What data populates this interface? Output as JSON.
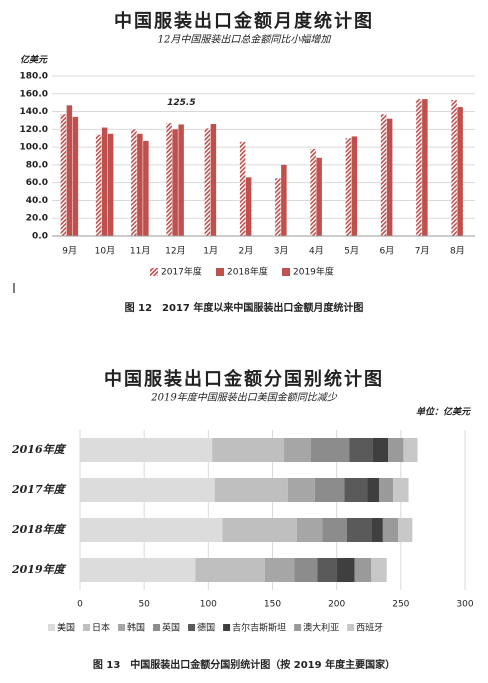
{
  "chart_data": [
    {
      "type": "bar",
      "title": "中国服装出口金额月度统计图",
      "subtitle": "12月中国服装出口总金额同比小幅增加",
      "y_label": "亿美元",
      "categories": [
        "9月",
        "10月",
        "11月",
        "12月",
        "1月",
        "2月",
        "3月",
        "4月",
        "5月",
        "6月",
        "7月",
        "8月"
      ],
      "series": [
        {
          "name": "2017年度",
          "color": "#c0504d",
          "hatch": true,
          "values": [
            137,
            114,
            120,
            127,
            121,
            106,
            65,
            98,
            110,
            137,
            154,
            153
          ]
        },
        {
          "name": "2018年度",
          "color": "#c0504d",
          "values": [
            147,
            122,
            115,
            120,
            null,
            null,
            null,
            null,
            null,
            null,
            null,
            null
          ]
        },
        {
          "name": "2019年度",
          "color": "#c0504d",
          "values": [
            134,
            115,
            107,
            125.5,
            126,
            66,
            80,
            88,
            112,
            132,
            154,
            145
          ],
          "value_labels": [
            null,
            null,
            null,
            "125.5",
            null,
            null,
            null,
            null,
            null,
            null,
            null,
            null
          ]
        }
      ],
      "ylim": [
        0,
        180
      ],
      "yticks": [
        {
          "value": 0,
          "label": "0.0"
        },
        {
          "value": 20,
          "label": "20.0"
        },
        {
          "value": 40,
          "label": "40.0"
        },
        {
          "value": 60,
          "label": "60.0"
        },
        {
          "value": 80,
          "label": "80.0"
        },
        {
          "value": 100,
          "label": "100.0"
        },
        {
          "value": 120,
          "label": "120.0"
        },
        {
          "value": 140,
          "label": "140.0"
        },
        {
          "value": 160,
          "label": "160.0"
        },
        {
          "value": 180,
          "label": "180.0"
        }
      ],
      "grid": true,
      "legend": "bottom",
      "caption": "图 12　2017 年度以来中国服装出口金额月度统计图"
    },
    {
      "type": "bar",
      "orientation": "horizontal",
      "stacked": true,
      "title": "中国服装出口金额分国别统计图",
      "subtitle": "2019年度中国服装出口美国金额同比减少",
      "unit": "单位：亿美元",
      "categories": [
        "2016年度",
        "2017年度",
        "2018年度",
        "2019年度"
      ],
      "series": [
        {
          "name": "美国",
          "color": "#dcdcdc",
          "values": [
            103,
            105,
            111,
            90
          ]
        },
        {
          "name": "日本",
          "color": "#bfbfbf",
          "values": [
            56,
            57,
            58,
            54
          ]
        },
        {
          "name": "韩国",
          "color": "#a6a6a6",
          "values": [
            21,
            21,
            20,
            23
          ]
        },
        {
          "name": "英国",
          "color": "#8c8c8c",
          "values": [
            30,
            23,
            19,
            18
          ]
        },
        {
          "name": "德国",
          "color": "#5a5a5a",
          "values": [
            18,
            18,
            19,
            15
          ]
        },
        {
          "name": "吉尔吉斯斯坦",
          "color": "#3f3f3f",
          "values": [
            12,
            9,
            9,
            14
          ]
        },
        {
          "name": "澳大利亚",
          "color": "#9a9a9a",
          "values": [
            12,
            11,
            12,
            13
          ]
        },
        {
          "name": "西班牙",
          "color": "#c8c8c8",
          "values": [
            11,
            12,
            11,
            12
          ]
        }
      ],
      "xlim": [
        0,
        300
      ],
      "xticks": [
        0,
        50,
        100,
        150,
        200,
        250,
        300
      ],
      "grid": true,
      "legend": "bottom",
      "caption": "图 13　中国服装出口金额分国别统计图（按 2019 年度主要国家）"
    }
  ]
}
